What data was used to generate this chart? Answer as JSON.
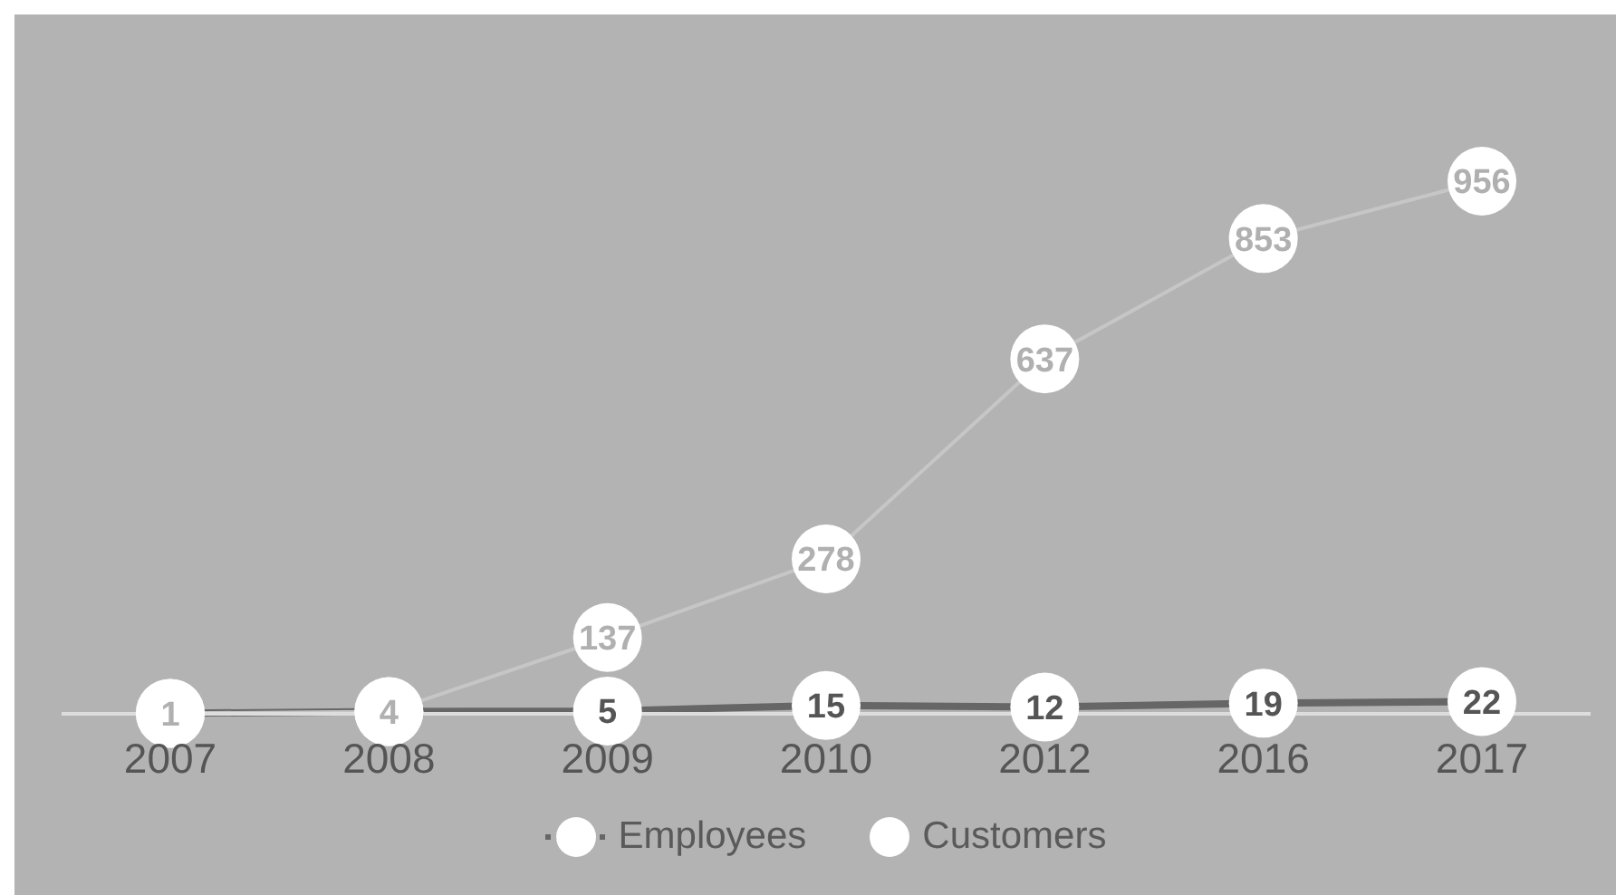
{
  "chart_data": {
    "type": "line",
    "categories": [
      "2007",
      "2008",
      "2009",
      "2010",
      "2012",
      "2016",
      "2017"
    ],
    "series": [
      {
        "name": "Employees",
        "color": "#666666",
        "values": [
          1,
          4,
          5,
          15,
          12,
          19,
          22
        ],
        "value_labels": [
          null,
          null,
          "5",
          "15",
          "12",
          "19",
          "22"
        ]
      },
      {
        "name": "Customers",
        "color": "#c6c6c6",
        "values": [
          1,
          4,
          137,
          278,
          637,
          853,
          956
        ]
      }
    ],
    "data_labels": true,
    "marker": "circle",
    "legend": "bottom",
    "grid": false
  }
}
